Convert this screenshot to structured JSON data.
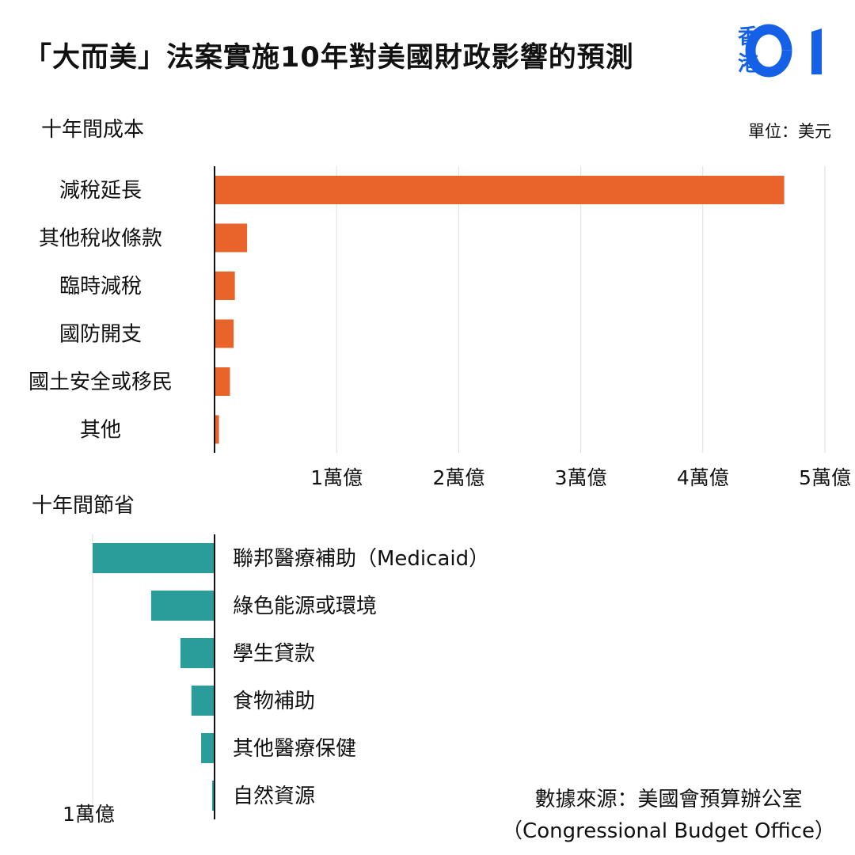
{
  "title": "「大而美」法案實施10年對美國財政影響的預測",
  "logo": {
    "line1": "香",
    "line2": "港"
  },
  "unit": "單位：美元",
  "colors": {
    "cost": "#e8642a",
    "saving": "#2a9d9a",
    "grid": "#dddddd",
    "axis": "#111111",
    "logo": "#1461e8"
  },
  "chart_data": [
    {
      "type": "bar",
      "orientation": "horizontal",
      "title": "十年間成本",
      "categories": [
        "減稅延長",
        "其他稅收條款",
        "臨時減稅",
        "國防開支",
        "國土安全或移民",
        "其他"
      ],
      "values": [
        46600,
        2600,
        1600,
        1500,
        1200,
        300
      ],
      "value_unit": "億美元",
      "xlim": [
        0,
        50000
      ],
      "ticks": [
        10000,
        20000,
        30000,
        40000,
        50000
      ],
      "tick_labels": [
        "1萬億",
        "2萬億",
        "3萬億",
        "4萬億",
        "5萬億"
      ],
      "grid": true
    },
    {
      "type": "bar",
      "orientation": "horizontal",
      "title": "十年間節省",
      "categories": [
        "聯邦醫療補助（Medicaid）",
        "綠色能源或環境",
        "學生貸款",
        "食物補助",
        "其他醫療保健",
        "自然資源"
      ],
      "values": [
        -10000,
        -5200,
        -2800,
        -1900,
        -1100,
        -200
      ],
      "value_unit": "億美元",
      "xlim": [
        -10000,
        0
      ],
      "ticks": [
        -10000
      ],
      "tick_labels": [
        "1萬億"
      ],
      "grid": true
    }
  ],
  "source": {
    "line1": "數據來源：美國會預算辦公室",
    "line2": "（Congressional Budget Office）"
  }
}
